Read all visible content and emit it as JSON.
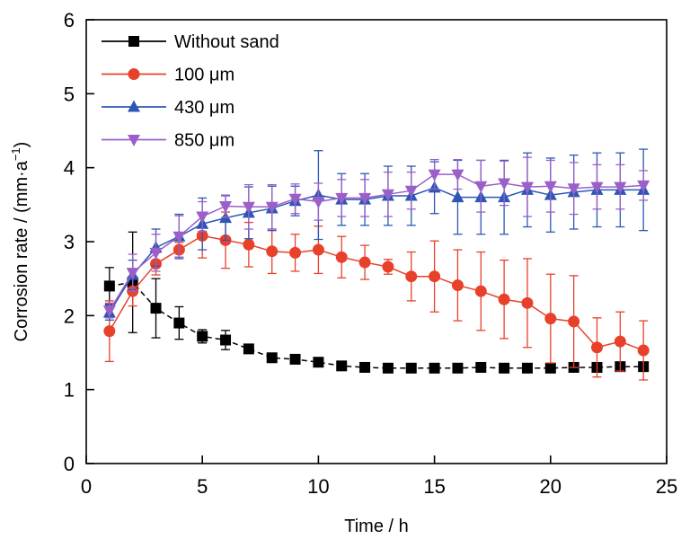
{
  "chart_data": {
    "type": "line",
    "xlabel": "Time / h",
    "ylabel": "Corrosion rate / (mm·a",
    "ylabel_sup": "−1",
    "ylabel_close": ")",
    "xlim": [
      0,
      25
    ],
    "ylim": [
      0,
      6
    ],
    "x_ticks": [
      "0",
      "5",
      "10",
      "15",
      "20",
      "25"
    ],
    "y_ticks": [
      "0",
      "1",
      "2",
      "3",
      "4",
      "5",
      "6"
    ],
    "grid": false,
    "legend_position": "top-left",
    "x": [
      1,
      2,
      3,
      4,
      5,
      6,
      7,
      8,
      9,
      10,
      11,
      12,
      13,
      14,
      15,
      16,
      17,
      18,
      19,
      20,
      21,
      22,
      23,
      24
    ],
    "series": [
      {
        "name": "Without sand",
        "color": "#000000",
        "marker": "square",
        "dash": "6,4",
        "values": [
          2.4,
          2.45,
          2.1,
          1.9,
          1.72,
          1.67,
          1.55,
          1.43,
          1.41,
          1.37,
          1.32,
          1.3,
          1.29,
          1.29,
          1.29,
          1.29,
          1.3,
          1.29,
          1.29,
          1.29,
          1.3,
          1.3,
          1.31,
          1.31
        ],
        "errors": [
          0.25,
          0.68,
          0.4,
          0.22,
          0.09,
          0.13,
          0.04,
          0.04,
          0.03,
          0.03,
          0.03,
          0.03,
          0.03,
          0.03,
          0.03,
          0.03,
          0.03,
          0.03,
          0.03,
          0.03,
          0.03,
          0.03,
          0.03,
          0.03
        ]
      },
      {
        "name": "100 μm",
        "color": "#e8412b",
        "marker": "circle",
        "dash": "",
        "values": [
          1.79,
          2.33,
          2.7,
          2.89,
          3.08,
          3.02,
          2.96,
          2.87,
          2.85,
          2.89,
          2.79,
          2.72,
          2.66,
          2.53,
          2.53,
          2.41,
          2.33,
          2.22,
          2.17,
          1.96,
          1.92,
          1.57,
          1.65,
          1.53
        ],
        "errors": [
          0.41,
          0.2,
          0.15,
          0.1,
          0.3,
          0.38,
          0.3,
          0.3,
          0.25,
          0.32,
          0.28,
          0.23,
          0.1,
          0.33,
          0.48,
          0.48,
          0.53,
          0.53,
          0.6,
          0.6,
          0.62,
          0.4,
          0.4,
          0.4
        ]
      },
      {
        "name": "430 μm",
        "color": "#2e57b5",
        "marker": "triangle-up",
        "dash": "",
        "values": [
          2.04,
          2.55,
          2.92,
          3.07,
          3.24,
          3.32,
          3.39,
          3.45,
          3.55,
          3.63,
          3.57,
          3.57,
          3.62,
          3.62,
          3.73,
          3.6,
          3.6,
          3.6,
          3.7,
          3.63,
          3.67,
          3.7,
          3.7,
          3.7
        ],
        "errors": [
          0.1,
          0.2,
          0.25,
          0.3,
          0.35,
          0.3,
          0.35,
          0.3,
          0.2,
          0.6,
          0.35,
          0.35,
          0.4,
          0.4,
          0.35,
          0.5,
          0.5,
          0.5,
          0.5,
          0.5,
          0.5,
          0.5,
          0.5,
          0.55
        ]
      },
      {
        "name": "850 μm",
        "color": "#9a5fc9",
        "marker": "triangle-down",
        "dash": "",
        "values": [
          2.07,
          2.58,
          2.85,
          3.07,
          3.34,
          3.48,
          3.47,
          3.47,
          3.58,
          3.54,
          3.59,
          3.59,
          3.64,
          3.69,
          3.91,
          3.91,
          3.75,
          3.79,
          3.74,
          3.75,
          3.72,
          3.74,
          3.74,
          3.76
        ],
        "errors": [
          0.1,
          0.25,
          0.25,
          0.28,
          0.2,
          0.15,
          0.3,
          0.3,
          0.2,
          0.25,
          0.25,
          0.25,
          0.3,
          0.25,
          0.2,
          0.2,
          0.35,
          0.3,
          0.4,
          0.35,
          0.35,
          0.3,
          0.3,
          0.2
        ]
      }
    ]
  }
}
